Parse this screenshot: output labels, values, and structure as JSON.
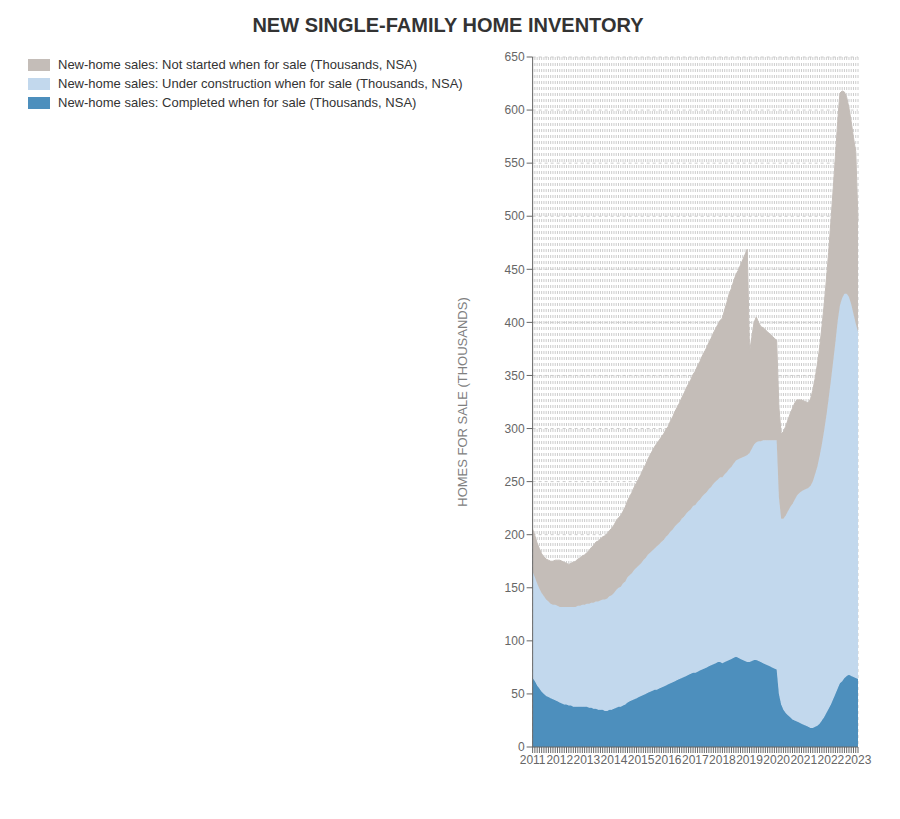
{
  "chart_data": {
    "type": "area",
    "title": "NEW SINGLE-FAMILY HOME INVENTORY",
    "y_label": "HOMES FOR SALE (THOUSANDS)",
    "stacked": true,
    "grid": true,
    "legend": "upper left",
    "ylim": [
      0,
      650
    ],
    "yticks": [
      0,
      50,
      100,
      150,
      200,
      250,
      300,
      350,
      400,
      450,
      500,
      550,
      600,
      650
    ],
    "categories": [
      "2011",
      null,
      null,
      null,
      null,
      null,
      null,
      null,
      null,
      null,
      null,
      null,
      "2012",
      null,
      null,
      null,
      null,
      null,
      null,
      null,
      null,
      null,
      null,
      null,
      "2013",
      null,
      null,
      null,
      null,
      null,
      null,
      null,
      null,
      null,
      null,
      null,
      "2014",
      null,
      null,
      null,
      null,
      null,
      null,
      null,
      null,
      null,
      null,
      null,
      "2015",
      null,
      null,
      null,
      null,
      null,
      null,
      null,
      null,
      null,
      null,
      null,
      "2016",
      null,
      null,
      null,
      null,
      null,
      null,
      null,
      null,
      null,
      null,
      null,
      "2017",
      null,
      null,
      null,
      null,
      null,
      null,
      null,
      null,
      null,
      null,
      null,
      "2018",
      null,
      null,
      null,
      null,
      null,
      null,
      null,
      null,
      null,
      null,
      null,
      "2019",
      null,
      null,
      null,
      null,
      null,
      null,
      null,
      null,
      null,
      null,
      null,
      "2020",
      null,
      null,
      null,
      null,
      null,
      null,
      null,
      null,
      null,
      null,
      null,
      "2021",
      null,
      null,
      null,
      null,
      null,
      null,
      null,
      null,
      null,
      null,
      null,
      "2022",
      null,
      null,
      null,
      null,
      null,
      null,
      null,
      null,
      null,
      null,
      null,
      "2023"
    ],
    "series": [
      {
        "name": "New-home sales: Not started when for sale (Thousands, NSA)",
        "color": "#c4bdb8",
        "values": [
          40,
          39,
          38,
          38,
          37,
          37,
          38,
          39,
          40,
          41,
          42,
          43,
          44,
          43,
          42,
          41,
          40,
          41,
          42,
          43,
          44,
          45,
          46,
          47,
          48,
          50,
          52,
          54,
          56,
          57,
          58,
          59,
          60,
          61,
          62,
          63,
          64,
          65,
          66,
          67,
          68,
          70,
          72,
          74,
          76,
          78,
          80,
          82,
          84,
          86,
          88,
          90,
          92,
          94,
          96,
          97,
          98,
          99,
          100,
          101,
          102,
          104,
          106,
          108,
          110,
          112,
          114,
          116,
          118,
          120,
          122,
          124,
          126,
          128,
          130,
          132,
          134,
          136,
          138,
          140,
          142,
          144,
          146,
          148,
          150,
          155,
          160,
          165,
          168,
          172,
          175,
          178,
          182,
          186,
          190,
          194,
          95,
          105,
          115,
          118,
          112,
          108,
          106,
          104,
          102,
          100,
          98,
          96,
          94,
          85,
          80,
          82,
          84,
          86,
          88,
          90,
          91,
          90,
          88,
          86,
          84,
          82,
          80,
          82,
          86,
          90,
          96,
          102,
          110,
          118,
          128,
          138,
          150,
          162,
          175,
          188,
          200,
          195,
          190,
          185,
          178,
          172,
          166,
          162,
          105
        ]
      },
      {
        "name": "New-home sales: Under construction when for sale (Thousands, NSA)",
        "color": "#c2d8ed",
        "values": [
          100,
          98,
          96,
          94,
          93,
          92,
          91,
          90,
          89,
          89,
          90,
          90,
          90,
          91,
          92,
          92,
          93,
          93,
          94,
          94,
          95,
          95,
          96,
          96,
          97,
          98,
          99,
          100,
          101,
          102,
          103,
          104,
          105,
          106,
          107,
          108,
          109,
          111,
          112,
          113,
          115,
          116,
          118,
          119,
          120,
          122,
          123,
          124,
          125,
          127,
          128,
          130,
          131,
          132,
          133,
          135,
          136,
          137,
          138,
          140,
          141,
          143,
          144,
          146,
          147,
          148,
          150,
          151,
          153,
          154,
          155,
          157,
          158,
          160,
          161,
          163,
          164,
          165,
          167,
          168,
          170,
          171,
          172,
          174,
          175,
          177,
          178,
          180,
          181,
          183,
          185,
          187,
          189,
          191,
          193,
          195,
          197,
          200,
          203,
          205,
          207,
          208,
          210,
          211,
          212,
          213,
          214,
          215,
          216,
          185,
          175,
          180,
          186,
          192,
          198,
          203,
          208,
          213,
          216,
          219,
          221,
          223,
          225,
          228,
          232,
          238,
          244,
          252,
          260,
          270,
          280,
          292,
          305,
          318,
          331,
          346,
          356,
          361,
          362,
          360,
          356,
          350,
          342,
          334,
          327
        ]
      },
      {
        "name": "New-home sales: Completed when for sale (Thousands, NSA)",
        "color": "#4d8fbd",
        "values": [
          65,
          62,
          58,
          55,
          52,
          50,
          48,
          47,
          46,
          45,
          44,
          43,
          42,
          41,
          40,
          40,
          39,
          39,
          38,
          38,
          38,
          38,
          38,
          38,
          38,
          37,
          37,
          36,
          36,
          35,
          35,
          35,
          34,
          34,
          35,
          35,
          36,
          37,
          38,
          38,
          39,
          40,
          42,
          43,
          44,
          45,
          46,
          47,
          48,
          49,
          50,
          51,
          52,
          53,
          54,
          54,
          55,
          56,
          57,
          58,
          59,
          60,
          61,
          62,
          63,
          64,
          65,
          66,
          67,
          68,
          69,
          70,
          70,
          71,
          72,
          73,
          74,
          75,
          76,
          77,
          78,
          79,
          80,
          80,
          79,
          80,
          81,
          82,
          83,
          84,
          85,
          84,
          83,
          82,
          81,
          80,
          80,
          81,
          82,
          82,
          81,
          80,
          79,
          78,
          77,
          76,
          75,
          74,
          73,
          50,
          40,
          35,
          32,
          30,
          28,
          26,
          25,
          24,
          23,
          22,
          21,
          20,
          19,
          18,
          18,
          19,
          20,
          22,
          25,
          28,
          32,
          36,
          40,
          45,
          50,
          55,
          60,
          62,
          65,
          67,
          68,
          67,
          66,
          65,
          64
        ]
      }
    ]
  }
}
